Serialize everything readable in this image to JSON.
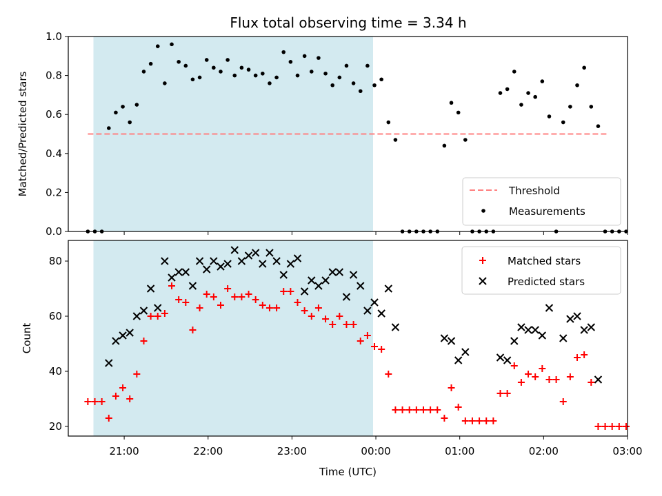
{
  "title": "Flux total observing time = 3.34 h",
  "colors": {
    "band": "#d3eaf0",
    "threshold": "#ff8080",
    "measurement": "#000000",
    "matched": "#ff0000",
    "predicted": "#000000"
  },
  "chart_data": [
    {
      "type": "scatter",
      "ylabel": "Matched/Predicted stars",
      "xlabel": "",
      "xlim": [
        "20:20",
        "03:00"
      ],
      "ylim": [
        0,
        1.0
      ],
      "yticks": [
        "0.0",
        "0.2",
        "0.4",
        "0.6",
        "0.8",
        "1.0"
      ],
      "shaded_band": {
        "start": "20:38",
        "end": "23:58"
      },
      "threshold": {
        "name": "Threshold",
        "value": 0.5,
        "start": "20:34",
        "end": "02:46"
      },
      "legend": {
        "placement": "lower-right",
        "entries": [
          "Threshold",
          "Measurements"
        ]
      },
      "series": [
        {
          "name": "Measurements",
          "marker": "dot",
          "points": [
            [
              "20:34",
              0
            ],
            [
              "20:39",
              0
            ],
            [
              "20:44",
              0
            ],
            [
              "20:49",
              0.53
            ],
            [
              "20:54",
              0.61
            ],
            [
              "20:59",
              0.64
            ],
            [
              "21:04",
              0.56
            ],
            [
              "21:09",
              0.65
            ],
            [
              "21:14",
              0.82
            ],
            [
              "21:19",
              0.86
            ],
            [
              "21:24",
              0.95
            ],
            [
              "21:29",
              0.76
            ],
            [
              "21:34",
              0.96
            ],
            [
              "21:39",
              0.87
            ],
            [
              "21:44",
              0.85
            ],
            [
              "21:49",
              0.78
            ],
            [
              "21:54",
              0.79
            ],
            [
              "21:59",
              0.88
            ],
            [
              "22:04",
              0.84
            ],
            [
              "22:09",
              0.82
            ],
            [
              "22:14",
              0.88
            ],
            [
              "22:19",
              0.8
            ],
            [
              "22:24",
              0.84
            ],
            [
              "22:29",
              0.83
            ],
            [
              "22:34",
              0.8
            ],
            [
              "22:39",
              0.81
            ],
            [
              "22:44",
              0.76
            ],
            [
              "22:49",
              0.79
            ],
            [
              "22:54",
              0.92
            ],
            [
              "22:59",
              0.87
            ],
            [
              "23:04",
              0.8
            ],
            [
              "23:09",
              0.9
            ],
            [
              "23:14",
              0.82
            ],
            [
              "23:19",
              0.89
            ],
            [
              "23:24",
              0.81
            ],
            [
              "23:29",
              0.75
            ],
            [
              "23:34",
              0.79
            ],
            [
              "23:39",
              0.85
            ],
            [
              "23:44",
              0.76
            ],
            [
              "23:49",
              0.72
            ],
            [
              "23:54",
              0.85
            ],
            [
              "23:59",
              0.75
            ],
            [
              "00:04",
              0.78
            ],
            [
              "00:09",
              0.56
            ],
            [
              "00:14",
              0.47
            ],
            [
              "00:19",
              0
            ],
            [
              "00:24",
              0
            ],
            [
              "00:29",
              0
            ],
            [
              "00:34",
              0
            ],
            [
              "00:39",
              0
            ],
            [
              "00:44",
              0
            ],
            [
              "00:49",
              0.44
            ],
            [
              "00:54",
              0.66
            ],
            [
              "00:59",
              0.61
            ],
            [
              "01:04",
              0.47
            ],
            [
              "01:09",
              0
            ],
            [
              "01:14",
              0
            ],
            [
              "01:19",
              0
            ],
            [
              "01:24",
              0
            ],
            [
              "01:29",
              0.71
            ],
            [
              "01:34",
              0.73
            ],
            [
              "01:39",
              0.82
            ],
            [
              "01:44",
              0.65
            ],
            [
              "01:49",
              0.71
            ],
            [
              "01:54",
              0.69
            ],
            [
              "01:59",
              0.77
            ],
            [
              "02:04",
              0.59
            ],
            [
              "02:09",
              0
            ],
            [
              "02:14",
              0.56
            ],
            [
              "02:19",
              0.64
            ],
            [
              "02:24",
              0.75
            ],
            [
              "02:29",
              0.84
            ],
            [
              "02:34",
              0.64
            ],
            [
              "02:39",
              0.54
            ],
            [
              "02:44",
              0
            ],
            [
              "02:49",
              0
            ],
            [
              "02:54",
              0
            ],
            [
              "02:59",
              0
            ]
          ]
        }
      ]
    },
    {
      "type": "scatter",
      "ylabel": "Count",
      "xlabel": "Time (UTC)",
      "xlim": [
        "20:20",
        "03:00"
      ],
      "ylim": [
        16.5,
        87.5
      ],
      "yticks": [
        "20",
        "40",
        "60",
        "80"
      ],
      "xticks": [
        "21:00",
        "22:00",
        "23:00",
        "00:00",
        "01:00",
        "02:00",
        "03:00"
      ],
      "shaded_band": {
        "start": "20:38",
        "end": "23:58"
      },
      "legend": {
        "placement": "top-right",
        "entries": [
          "Matched stars",
          "Predicted stars"
        ]
      },
      "series": [
        {
          "name": "Matched stars",
          "marker": "plus",
          "points": [
            [
              "20:34",
              29
            ],
            [
              "20:39",
              29
            ],
            [
              "20:44",
              29
            ],
            [
              "20:49",
              23
            ],
            [
              "20:54",
              31
            ],
            [
              "20:59",
              34
            ],
            [
              "21:04",
              30
            ],
            [
              "21:09",
              39
            ],
            [
              "21:14",
              51
            ],
            [
              "21:19",
              60
            ],
            [
              "21:24",
              60
            ],
            [
              "21:29",
              61
            ],
            [
              "21:34",
              71
            ],
            [
              "21:39",
              66
            ],
            [
              "21:44",
              65
            ],
            [
              "21:49",
              55
            ],
            [
              "21:54",
              63
            ],
            [
              "21:59",
              68
            ],
            [
              "22:04",
              67
            ],
            [
              "22:09",
              64
            ],
            [
              "22:14",
              70
            ],
            [
              "22:19",
              67
            ],
            [
              "22:24",
              67
            ],
            [
              "22:29",
              68
            ],
            [
              "22:34",
              66
            ],
            [
              "22:39",
              64
            ],
            [
              "22:44",
              63
            ],
            [
              "22:49",
              63
            ],
            [
              "22:54",
              69
            ],
            [
              "22:59",
              69
            ],
            [
              "23:04",
              65
            ],
            [
              "23:09",
              62
            ],
            [
              "23:14",
              60
            ],
            [
              "23:19",
              63
            ],
            [
              "23:24",
              59
            ],
            [
              "23:29",
              57
            ],
            [
              "23:34",
              60
            ],
            [
              "23:39",
              57
            ],
            [
              "23:44",
              57
            ],
            [
              "23:49",
              51
            ],
            [
              "23:54",
              53
            ],
            [
              "23:59",
              49
            ],
            [
              "00:04",
              48
            ],
            [
              "00:09",
              39
            ],
            [
              "00:14",
              26
            ],
            [
              "00:19",
              26
            ],
            [
              "00:24",
              26
            ],
            [
              "00:29",
              26
            ],
            [
              "00:34",
              26
            ],
            [
              "00:39",
              26
            ],
            [
              "00:44",
              26
            ],
            [
              "00:49",
              23
            ],
            [
              "00:54",
              34
            ],
            [
              "00:59",
              27
            ],
            [
              "01:04",
              22
            ],
            [
              "01:09",
              22
            ],
            [
              "01:14",
              22
            ],
            [
              "01:19",
              22
            ],
            [
              "01:24",
              22
            ],
            [
              "01:29",
              32
            ],
            [
              "01:34",
              32
            ],
            [
              "01:39",
              42
            ],
            [
              "01:44",
              36
            ],
            [
              "01:49",
              39
            ],
            [
              "01:54",
              38
            ],
            [
              "01:59",
              41
            ],
            [
              "02:04",
              37
            ],
            [
              "02:09",
              37
            ],
            [
              "02:14",
              29
            ],
            [
              "02:19",
              38
            ],
            [
              "02:24",
              45
            ],
            [
              "02:29",
              46
            ],
            [
              "02:34",
              36
            ],
            [
              "02:39",
              20
            ],
            [
              "02:44",
              20
            ],
            [
              "02:49",
              20
            ],
            [
              "02:54",
              20
            ],
            [
              "02:59",
              20
            ]
          ]
        },
        {
          "name": "Predicted stars",
          "marker": "x",
          "points": [
            [
              "20:49",
              43
            ],
            [
              "20:54",
              51
            ],
            [
              "20:59",
              53
            ],
            [
              "21:04",
              54
            ],
            [
              "21:09",
              60
            ],
            [
              "21:14",
              62
            ],
            [
              "21:19",
              70
            ],
            [
              "21:24",
              63
            ],
            [
              "21:29",
              80
            ],
            [
              "21:34",
              74
            ],
            [
              "21:39",
              76
            ],
            [
              "21:44",
              76
            ],
            [
              "21:49",
              71
            ],
            [
              "21:54",
              80
            ],
            [
              "21:59",
              77
            ],
            [
              "22:04",
              80
            ],
            [
              "22:09",
              78
            ],
            [
              "22:14",
              79
            ],
            [
              "22:19",
              84
            ],
            [
              "22:24",
              80
            ],
            [
              "22:29",
              82
            ],
            [
              "22:34",
              83
            ],
            [
              "22:39",
              79
            ],
            [
              "22:44",
              83
            ],
            [
              "22:49",
              80
            ],
            [
              "22:54",
              75
            ],
            [
              "22:59",
              79
            ],
            [
              "23:04",
              81
            ],
            [
              "23:09",
              69
            ],
            [
              "23:14",
              73
            ],
            [
              "23:19",
              71
            ],
            [
              "23:24",
              73
            ],
            [
              "23:29",
              76
            ],
            [
              "23:34",
              76
            ],
            [
              "23:39",
              67
            ],
            [
              "23:44",
              75
            ],
            [
              "23:49",
              71
            ],
            [
              "23:54",
              62
            ],
            [
              "23:59",
              65
            ],
            [
              "00:04",
              61
            ],
            [
              "00:09",
              70
            ],
            [
              "00:14",
              56
            ],
            [
              "00:49",
              52
            ],
            [
              "00:54",
              51
            ],
            [
              "00:59",
              44
            ],
            [
              "01:04",
              47
            ],
            [
              "01:29",
              45
            ],
            [
              "01:34",
              44
            ],
            [
              "01:39",
              51
            ],
            [
              "01:44",
              56
            ],
            [
              "01:49",
              55
            ],
            [
              "01:54",
              55
            ],
            [
              "01:59",
              53
            ],
            [
              "02:04",
              63
            ],
            [
              "02:14",
              52
            ],
            [
              "02:19",
              59
            ],
            [
              "02:24",
              60
            ],
            [
              "02:29",
              55
            ],
            [
              "02:34",
              56
            ],
            [
              "02:39",
              37
            ]
          ]
        }
      ]
    }
  ]
}
